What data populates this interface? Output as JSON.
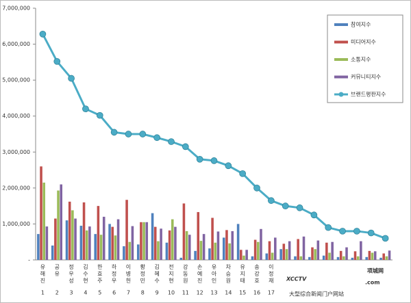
{
  "chart_data": {
    "type": "bar_line",
    "categories": [
      "유해진",
      "공유",
      "정우성",
      "김수현",
      "한효주",
      "하정우",
      "이병헌",
      "황정민",
      "김혜수",
      "전지현",
      "강동원",
      "손예진",
      "유아인",
      "차승원",
      "유지태",
      "송강호",
      "이정재",
      null,
      null,
      null,
      null,
      null,
      null,
      null,
      null
    ],
    "category_numbers": [
      "1",
      "2",
      "3",
      "4",
      "5",
      "6",
      "7",
      "8",
      "9",
      "10",
      "11",
      "12",
      "13",
      "14",
      "15",
      "16",
      "17",
      null,
      null,
      null,
      null,
      null,
      null,
      null,
      null
    ],
    "series": [
      {
        "name": "참여지수",
        "color": "#4f81bd",
        "values": [
          720000,
          400000,
          1100000,
          950000,
          720000,
          1000000,
          380000,
          430000,
          1300000,
          480000,
          60000,
          250000,
          320000,
          620000,
          1000000,
          100000,
          180000,
          300000,
          100000,
          80000,
          120000,
          80000,
          60000,
          80000,
          60000
        ]
      },
      {
        "name": "미디어지수",
        "color": "#c0504d",
        "values": [
          2600000,
          1150000,
          1620000,
          1600000,
          1500000,
          920000,
          1670000,
          1050000,
          920000,
          820000,
          1570000,
          1330000,
          1170000,
          830000,
          280000,
          560000,
          520000,
          450000,
          580000,
          350000,
          480000,
          250000,
          240000,
          250000,
          180000
        ]
      },
      {
        "name": "소통지수",
        "color": "#9bbb59",
        "values": [
          2150000,
          1930000,
          1380000,
          820000,
          700000,
          680000,
          500000,
          1050000,
          520000,
          1130000,
          800000,
          530000,
          480000,
          460000,
          120000,
          500000,
          200000,
          300000,
          100000,
          300000,
          200000,
          100000,
          100000,
          200000,
          100000
        ]
      },
      {
        "name": "커뮤니티지수",
        "color": "#8064a2",
        "values": [
          930000,
          2100000,
          1150000,
          930000,
          1200000,
          1130000,
          940000,
          1050000,
          870000,
          920000,
          700000,
          720000,
          790000,
          800000,
          280000,
          860000,
          620000,
          520000,
          650000,
          540000,
          500000,
          350000,
          520000,
          240000,
          260000
        ]
      },
      {
        "name": "브랜드평판지수",
        "color": "#4bacc6",
        "line": true,
        "values": [
          6280000,
          5520000,
          5050000,
          4200000,
          4020000,
          3550000,
          3500000,
          3500000,
          3400000,
          3290000,
          3150000,
          2800000,
          2760000,
          2620000,
          2400000,
          2000000,
          1650000,
          1500000,
          1450000,
          1250000,
          900000,
          800000,
          800000,
          750000,
          600000
        ]
      }
    ],
    "ylim": [
      0,
      7000000
    ],
    "yticks": [
      {
        "value": 0,
        "label": "-"
      },
      {
        "value": 1000000,
        "label": "1,000,000"
      },
      {
        "value": 2000000,
        "label": "2,000,000"
      },
      {
        "value": 3000000,
        "label": "3,000,000"
      },
      {
        "value": 4000000,
        "label": "4,000,000"
      },
      {
        "value": 5000000,
        "label": "5,000,000"
      },
      {
        "value": 6000000,
        "label": "6,000,000"
      },
      {
        "value": 7000000,
        "label": "7,000,000"
      }
    ],
    "legend": "top-right"
  },
  "watermark": {
    "logo": "XCCTV",
    "domain": ".com",
    "name": "项城网",
    "tagline": "大型综合新闻门户网站"
  }
}
